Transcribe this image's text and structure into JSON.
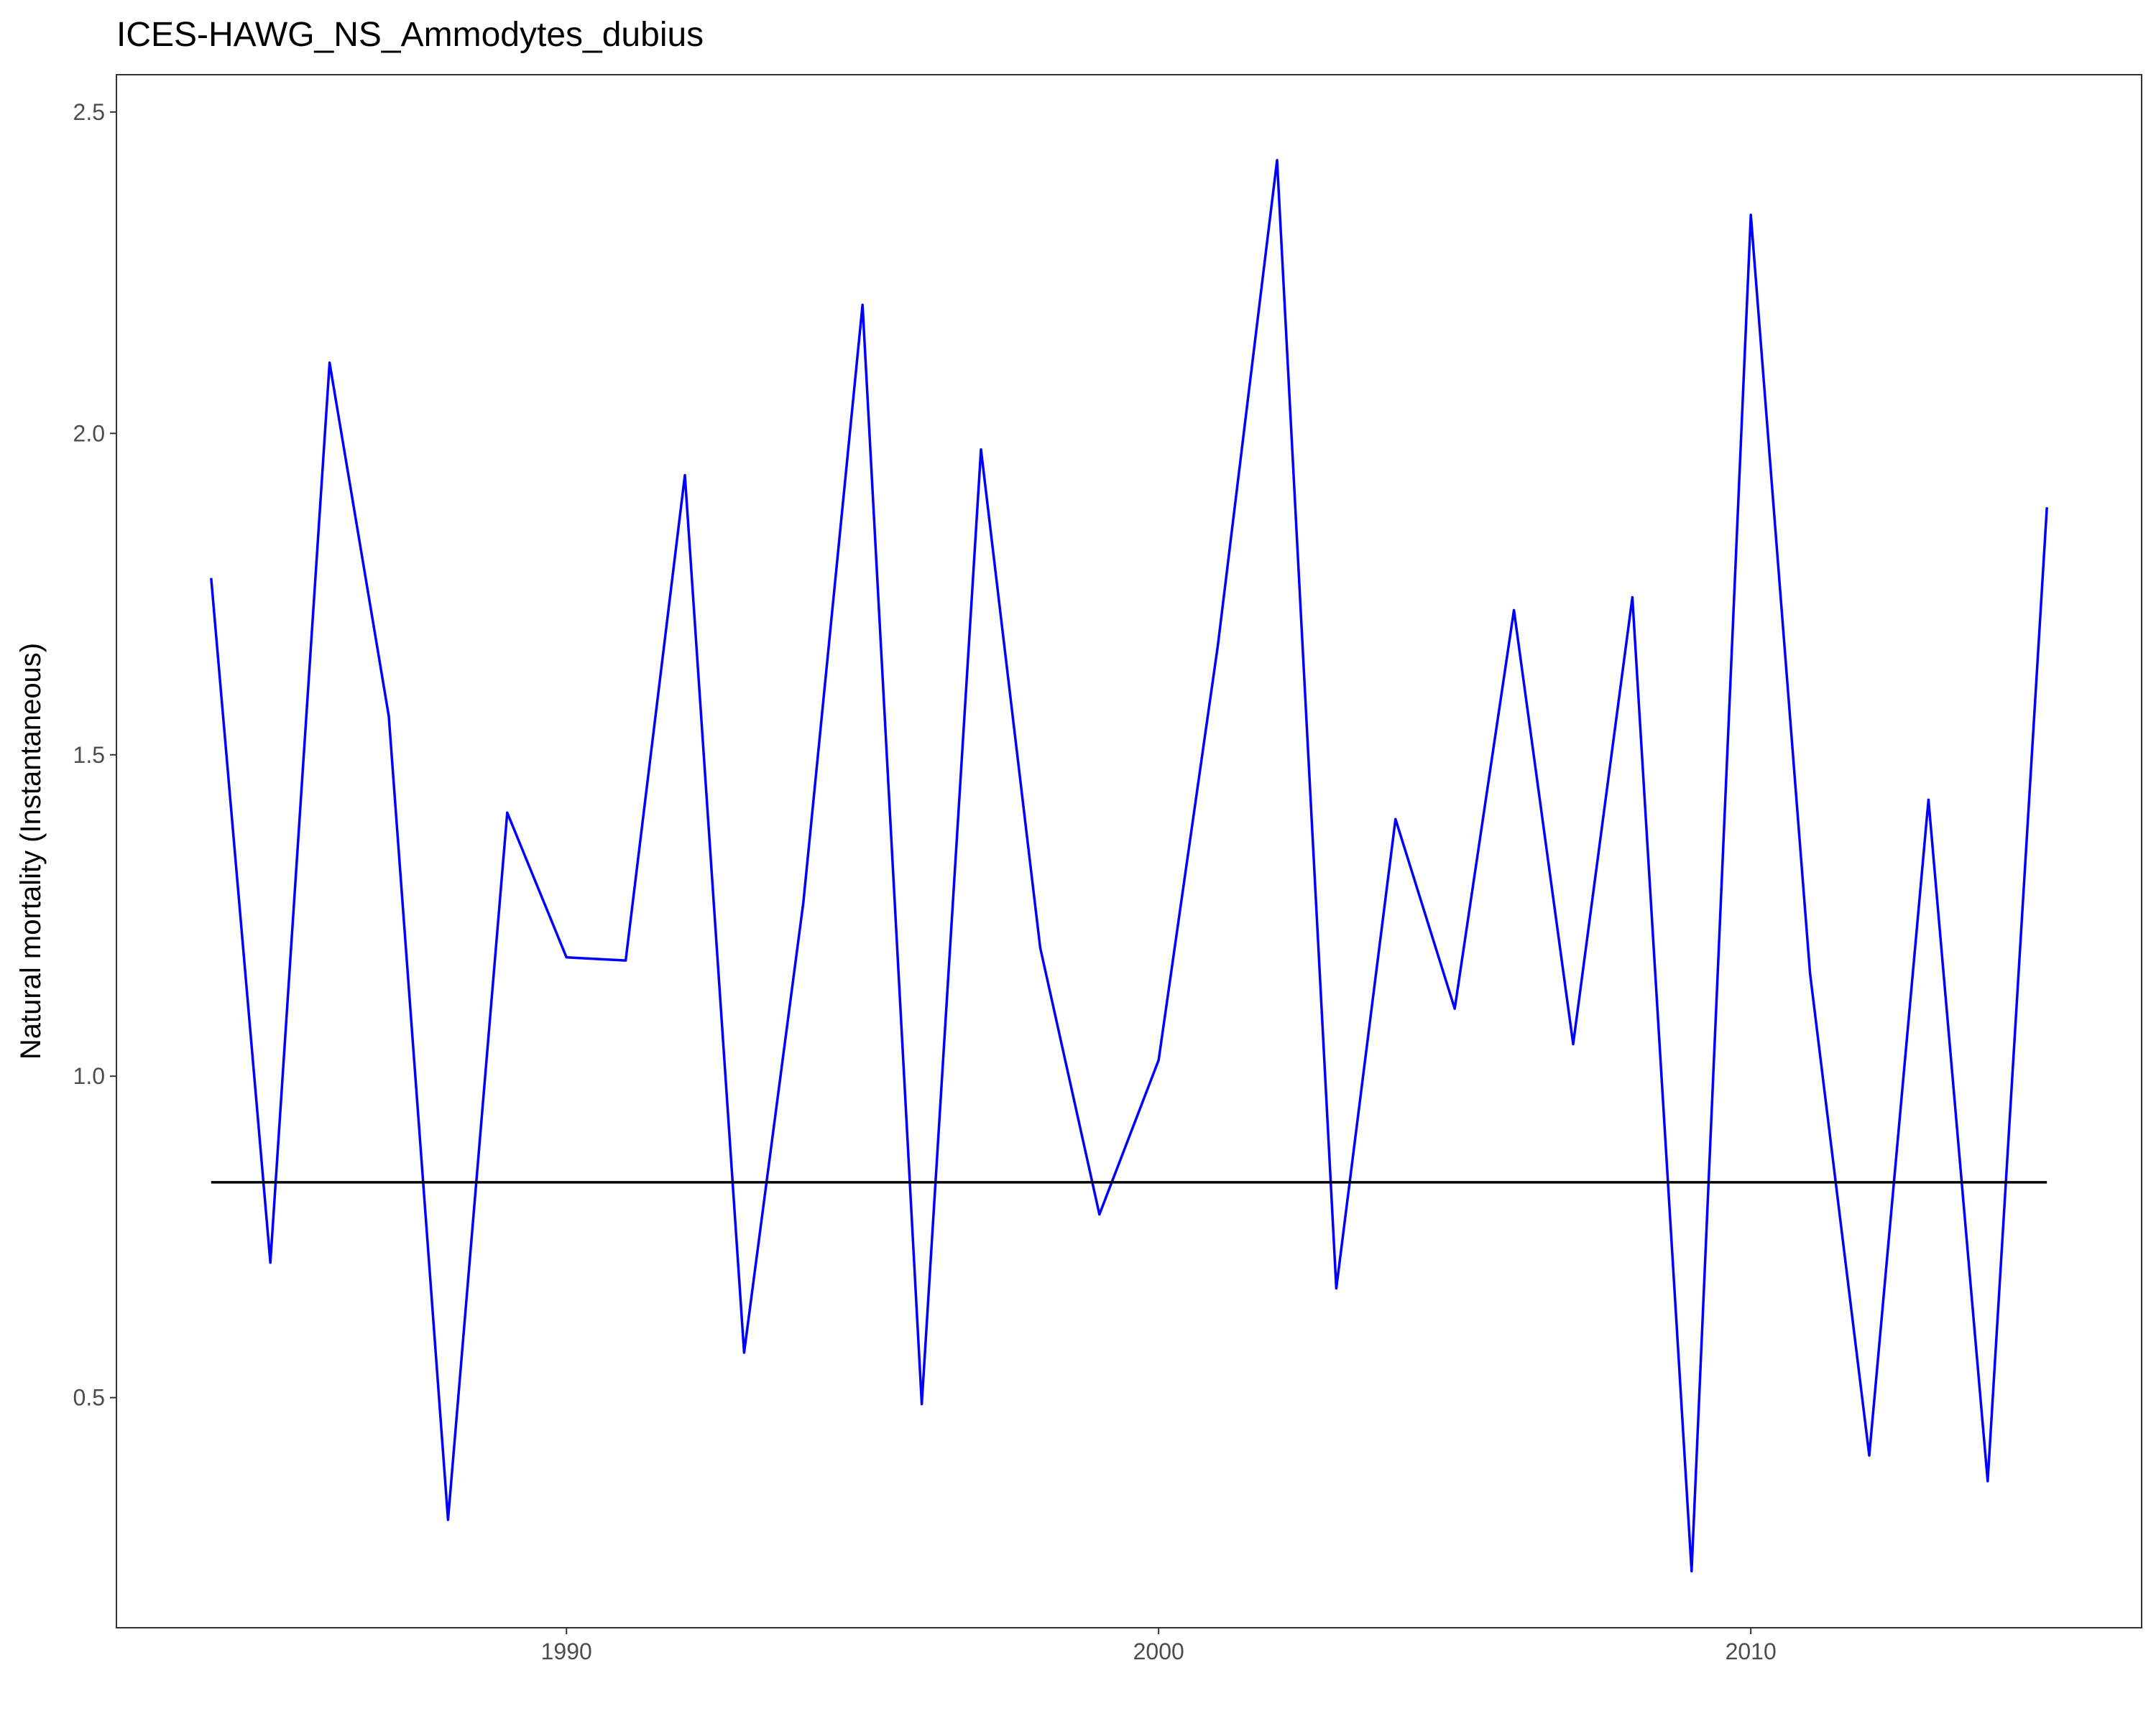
{
  "chart_data": {
    "type": "line",
    "title": "ICES-HAWG_NS_Ammodytes_dubius",
    "xlabel": "",
    "ylabel": "Natural mortality (Instantaneous)",
    "xlim": [
      1982.4,
      2016.6
    ],
    "ylim": [
      0.142,
      2.558
    ],
    "xticks": [
      1990,
      2000,
      2010
    ],
    "xtick_labels": [
      "1990",
      "2000",
      "2010"
    ],
    "yticks": [
      0.5,
      1.0,
      1.5,
      2.0,
      2.5
    ],
    "ytick_labels": [
      "0.5",
      "1.0",
      "1.5",
      "2.0",
      "2.5"
    ],
    "grid": false,
    "legend": "none",
    "series": [
      {
        "color": "#0000ff",
        "x": [
          1984,
          1985,
          1986,
          1987,
          1988,
          1989,
          1990,
          1991,
          1992,
          1993,
          1994,
          1995,
          1996,
          1997,
          1998,
          1999,
          2000,
          2001,
          2002,
          2003,
          2004,
          2005,
          2006,
          2007,
          2008,
          2009,
          2010,
          2011,
          2012,
          2013,
          2014,
          2015
        ],
        "values": [
          1.775,
          0.71,
          2.11,
          1.56,
          0.31,
          1.41,
          1.185,
          1.18,
          1.935,
          0.57,
          1.27,
          2.2,
          0.49,
          1.975,
          1.2,
          0.785,
          1.025,
          1.67,
          2.425,
          0.67,
          1.4,
          1.105,
          1.725,
          1.05,
          1.745,
          0.23,
          2.34,
          1.16,
          0.41,
          1.43,
          0.37,
          1.885
        ]
      },
      {
        "color": "#000000",
        "x": [
          1984,
          2015
        ],
        "values": [
          0.835,
          0.835
        ]
      }
    ]
  }
}
